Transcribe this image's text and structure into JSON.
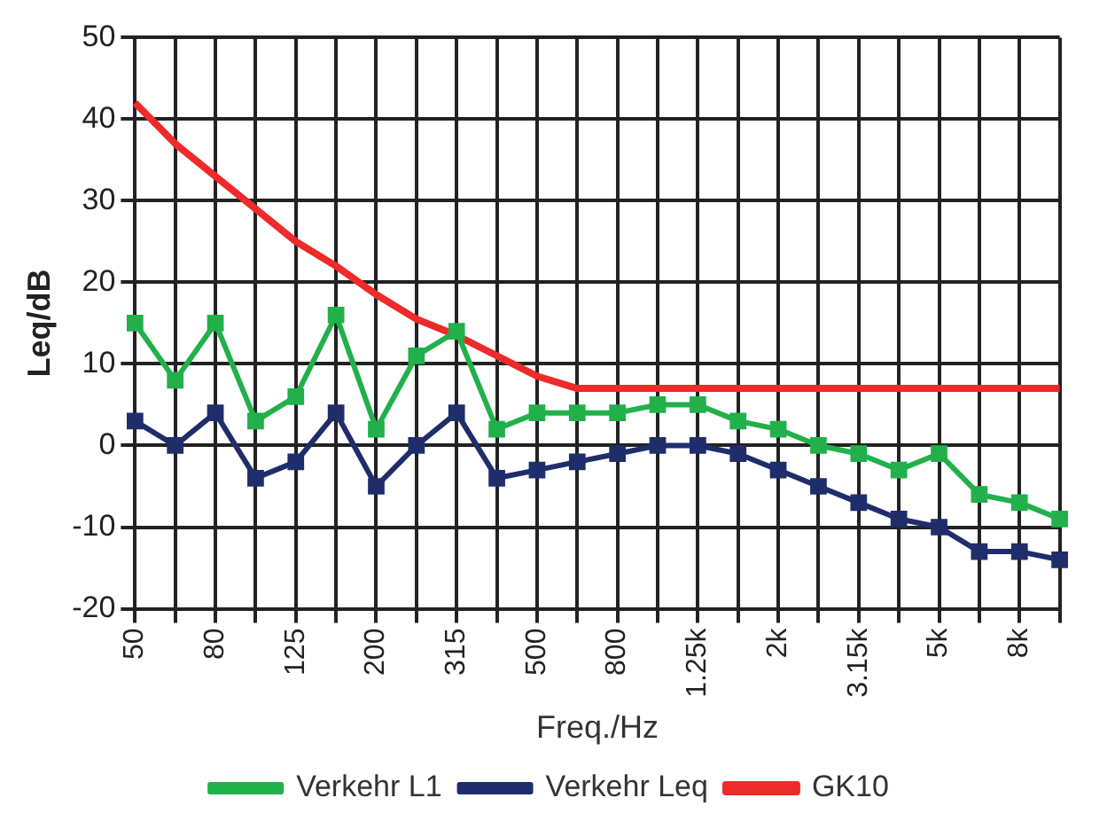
{
  "chart_data": {
    "type": "line",
    "xlabel": "Freq./Hz",
    "ylabel": "Leq/dB",
    "categories": [
      "50",
      null,
      "80",
      null,
      "125",
      null,
      "200",
      null,
      "315",
      null,
      "500",
      null,
      "800",
      null,
      "1.25k",
      null,
      "2k",
      null,
      "3.15k",
      null,
      "5k",
      null,
      "8k",
      null
    ],
    "series": [
      {
        "name": "Verkehr L1",
        "color": "#22b04b",
        "marker": "square",
        "values": [
          15,
          8,
          15,
          3,
          6,
          16,
          2,
          11,
          14,
          2,
          4,
          4,
          4,
          5,
          5,
          3,
          2,
          0,
          -1,
          -3,
          -1,
          -6,
          -7,
          -9
        ]
      },
      {
        "name": "Verkehr Leq",
        "color": "#1f2d6b",
        "marker": "square",
        "values": [
          3,
          0,
          4,
          -4,
          -2,
          4,
          -5,
          0,
          4,
          -4,
          -3,
          -2,
          -1,
          0,
          0,
          -1,
          -3,
          -5,
          -7,
          -9,
          -10,
          -13,
          -13,
          -14
        ]
      },
      {
        "name": "GK10",
        "color": "#ee2a2a",
        "marker": "none",
        "values": [
          42,
          37,
          33,
          29,
          25,
          22,
          18.5,
          15.5,
          13.5,
          11,
          8.5,
          7,
          7,
          7,
          7,
          7,
          7,
          7,
          7,
          7,
          7,
          7,
          7,
          7
        ]
      }
    ],
    "ylim": [
      -20,
      50
    ],
    "yticks": [
      -20,
      -10,
      0,
      10,
      20,
      30,
      40,
      50
    ],
    "grid": true,
    "legend": "bottom"
  }
}
